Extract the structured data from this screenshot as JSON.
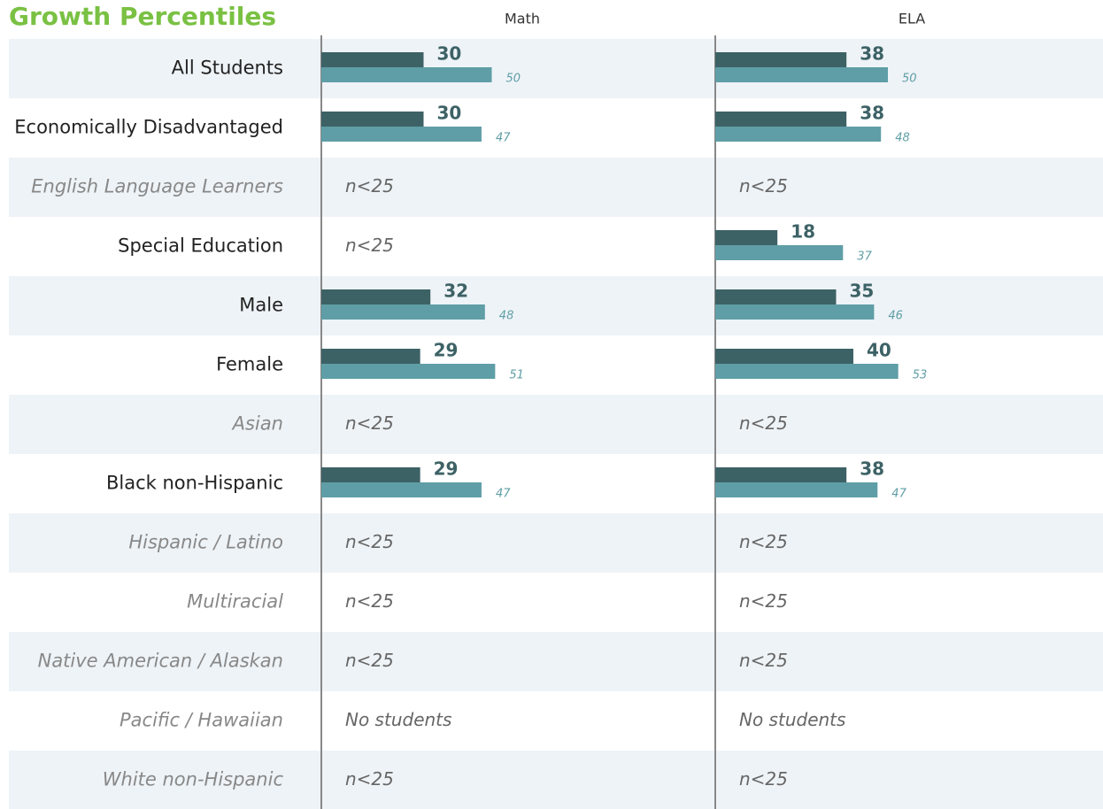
{
  "title": "Growth Percentiles",
  "categories": [
    "All Students",
    "Economically Disadvantaged",
    "English Language Learners",
    "Special Education",
    "Male",
    "Female",
    "Asian",
    "Black non-Hispanic",
    "Hispanic / Latino",
    "Multiracial",
    "Native American / Alaskan",
    "Pacific / Hawaiian",
    "White non-Hispanic"
  ],
  "chart_data": [
    {
      "type": "bar",
      "orientation": "horizontal",
      "title": "Math",
      "xlim": [
        0,
        100
      ],
      "series": [
        {
          "color": "#3d6266",
          "values": [
            30,
            30,
            null,
            null,
            32,
            29,
            null,
            29,
            null,
            null,
            null,
            null,
            null
          ]
        },
        {
          "color": "#5f9ea6",
          "values": [
            50,
            47,
            null,
            null,
            48,
            51,
            null,
            47,
            null,
            null,
            null,
            null,
            null
          ]
        }
      ],
      "notes": [
        null,
        null,
        "n<25",
        "n<25",
        null,
        null,
        "n<25",
        null,
        "n<25",
        "n<25",
        "n<25",
        "No students",
        "n<25"
      ]
    },
    {
      "type": "bar",
      "orientation": "horizontal",
      "title": "ELA",
      "xlim": [
        0,
        100
      ],
      "series": [
        {
          "color": "#3d6266",
          "values": [
            38,
            38,
            null,
            18,
            35,
            40,
            null,
            38,
            null,
            null,
            null,
            null,
            null
          ]
        },
        {
          "color": "#5f9ea6",
          "values": [
            50,
            48,
            null,
            37,
            46,
            53,
            null,
            47,
            null,
            null,
            null,
            null,
            null
          ]
        }
      ],
      "notes": [
        null,
        null,
        "n<25",
        null,
        null,
        null,
        "n<25",
        null,
        "n<25",
        "n<25",
        "n<25",
        "No students",
        "n<25"
      ]
    }
  ]
}
